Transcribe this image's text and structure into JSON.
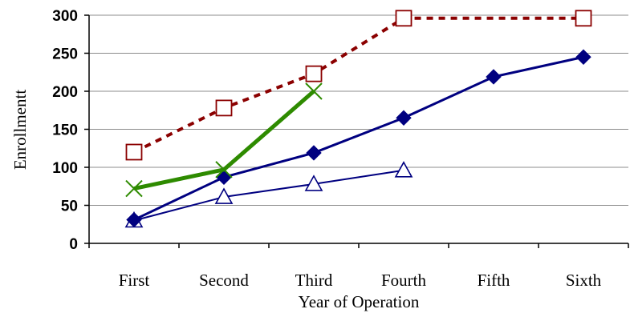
{
  "chart_data": {
    "type": "line",
    "xlabel": "Year of Operation",
    "ylabel": "Enrollmentt",
    "categories": [
      "First",
      "Second",
      "Third",
      "Fourth",
      "Fifth",
      "Sixth"
    ],
    "ylim": [
      0,
      300
    ],
    "yticks": [
      0,
      50,
      100,
      150,
      200,
      250,
      300
    ],
    "grid": true,
    "legend": "none",
    "series": [
      {
        "values": [
          120,
          178,
          223,
          296,
          null,
          296
        ],
        "color": "#8B0000",
        "marker": "square-open",
        "line_style": "dashed"
      },
      {
        "values": [
          72,
          97,
          200,
          null,
          null,
          null
        ],
        "color": "#2E8B00",
        "marker": "x",
        "line_style": "solid-thick"
      },
      {
        "values": [
          31,
          87,
          119,
          165,
          219,
          245
        ],
        "color": "#000080",
        "marker": "diamond-filled",
        "line_style": "solid"
      },
      {
        "values": [
          30,
          61,
          78,
          96,
          null,
          null
        ],
        "color": "#000080",
        "marker": "triangle-open",
        "line_style": "solid-thin"
      }
    ]
  }
}
